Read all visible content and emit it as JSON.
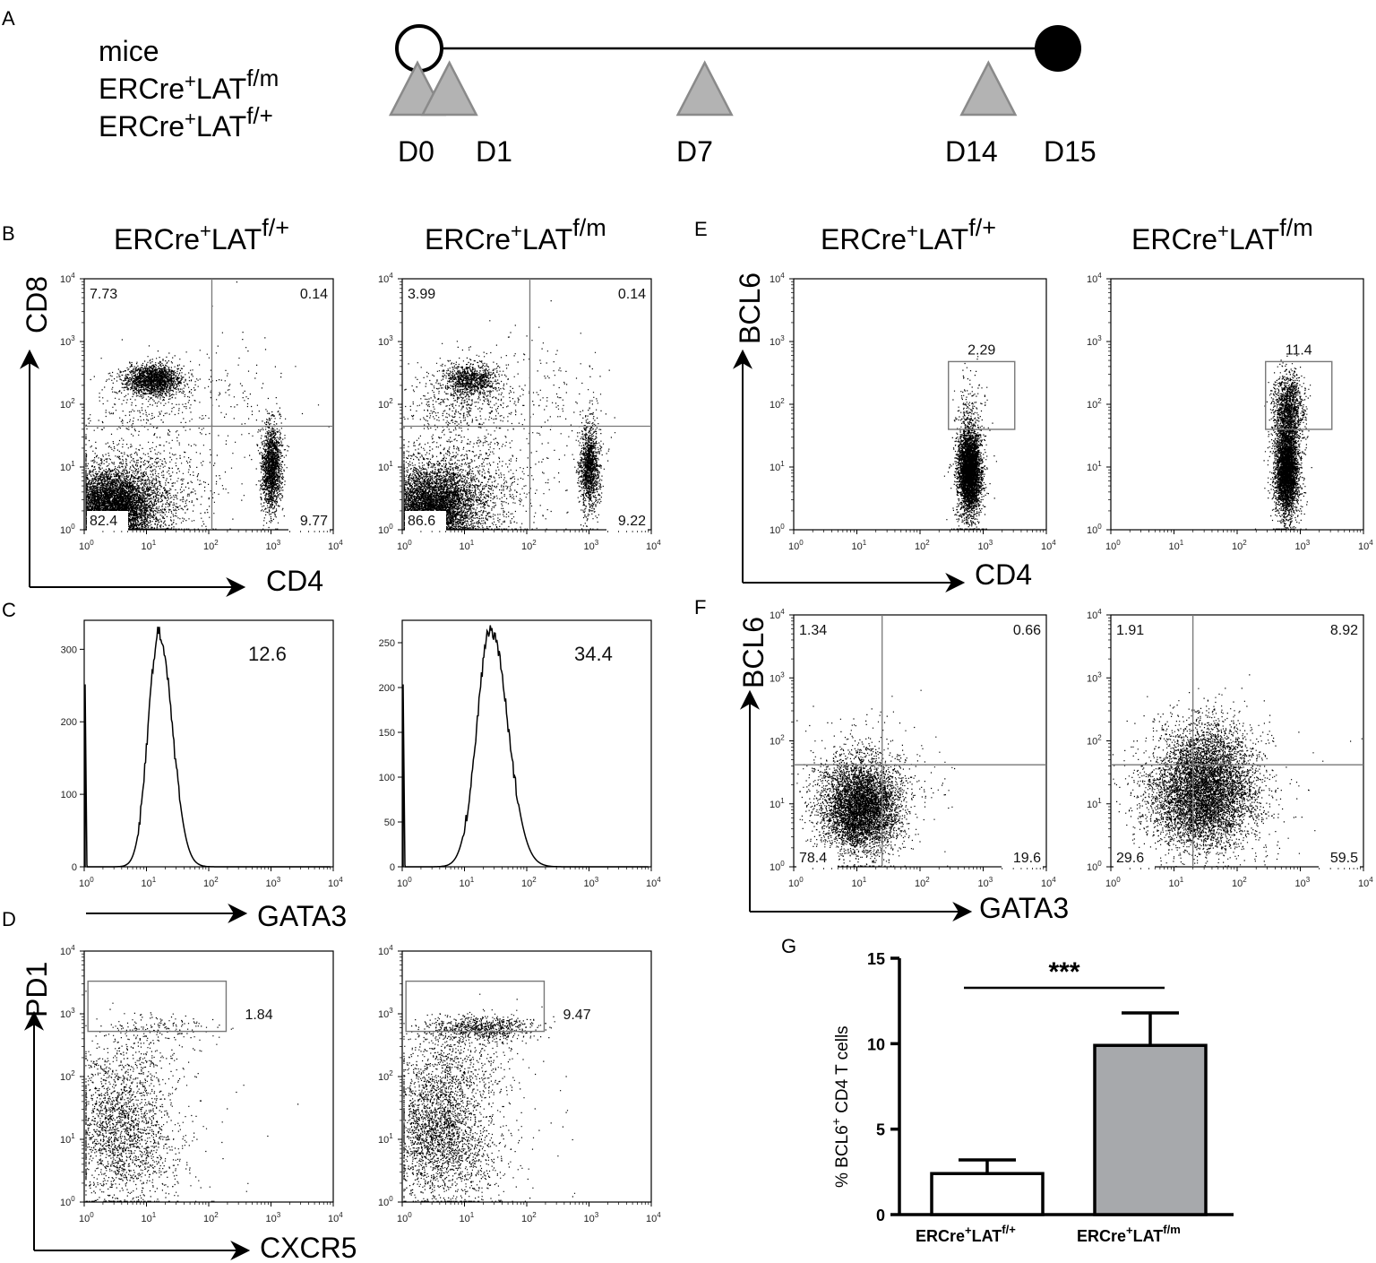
{
  "panel_labels": {
    "A": "A",
    "B": "B",
    "C": "C",
    "D": "D",
    "E": "E",
    "F": "F",
    "G": "G"
  },
  "timeline": {
    "mice_label": "mice",
    "genotype1": {
      "base": "ERCre",
      "sup1": "+",
      "mid": "LAT",
      "sup2": "f/m"
    },
    "genotype2": {
      "base": "ERCre",
      "sup1": "+",
      "mid": "LAT",
      "sup2": "f/+"
    },
    "days": [
      "D0",
      "D1",
      "D7",
      "D14",
      "D15"
    ],
    "day_values": [
      0,
      1,
      7,
      14,
      15
    ],
    "injection_days": [
      0,
      1,
      7,
      14
    ],
    "start_marker": "open-circle",
    "end_marker": "filled-circle"
  },
  "genotype_titles": {
    "wt": {
      "base": "ERCre",
      "sup1": "+",
      "mid": "LAT",
      "sup2": "f/+"
    },
    "mut": {
      "base": "ERCre",
      "sup1": "+",
      "mid": "LAT",
      "sup2": "f/m"
    }
  },
  "axis_names": {
    "B_y": "CD8",
    "B_x": "CD4",
    "C_x": "GATA3",
    "D_y": "PD1",
    "D_x": "CXCR5",
    "E_y": "BCL6",
    "E_x": "CD4",
    "F_y": "BCL6",
    "F_x": "GATA3"
  },
  "log_ticks": {
    "labels": [
      {
        "base": "10",
        "exp": "0"
      },
      {
        "base": "10",
        "exp": "1"
      },
      {
        "base": "10",
        "exp": "2"
      },
      {
        "base": "10",
        "exp": "3"
      },
      {
        "base": "10",
        "exp": "4"
      }
    ],
    "range": [
      0,
      4
    ]
  },
  "chart_data": [
    {
      "type": "scatter",
      "panel": "B-left",
      "x_channel": "CD4",
      "y_channel": "CD8",
      "scale": "log",
      "quadrant_values": {
        "ul": "7.73",
        "ur": "0.14",
        "ll": "82.4",
        "lr": "9.77"
      }
    },
    {
      "type": "scatter",
      "panel": "B-right",
      "x_channel": "CD4",
      "y_channel": "CD8",
      "scale": "log",
      "quadrant_values": {
        "ul": "3.99",
        "ur": "0.14",
        "ll": "86.6",
        "lr": "9.22"
      }
    },
    {
      "type": "line",
      "panel": "C-left",
      "x_channel": "GATA3",
      "scale": "log",
      "yticks": [
        "0",
        "100",
        "200",
        "300"
      ],
      "ylim": [
        0,
        340
      ],
      "peak_x_log": 1.2,
      "gate_value": "12.6"
    },
    {
      "type": "line",
      "panel": "C-right",
      "x_channel": "GATA3",
      "scale": "log",
      "yticks": [
        "0",
        "50",
        "100",
        "150",
        "200",
        "250"
      ],
      "ylim": [
        0,
        275
      ],
      "peak_x_log": 1.4,
      "gate_value": "34.4"
    },
    {
      "type": "scatter",
      "panel": "D-left",
      "x_channel": "CXCR5",
      "y_channel": "PD1",
      "scale": "log",
      "gate_value": "1.84"
    },
    {
      "type": "scatter",
      "panel": "D-right",
      "x_channel": "CXCR5",
      "y_channel": "PD1",
      "scale": "log",
      "gate_value": "9.47"
    },
    {
      "type": "scatter",
      "panel": "E-left",
      "x_channel": "CD4",
      "y_channel": "BCL6",
      "scale": "log",
      "gate_value": "2.29"
    },
    {
      "type": "scatter",
      "panel": "E-right",
      "x_channel": "CD4",
      "y_channel": "BCL6",
      "scale": "log",
      "gate_value": "11.4"
    },
    {
      "type": "scatter",
      "panel": "F-left",
      "x_channel": "GATA3",
      "y_channel": "BCL6",
      "scale": "log",
      "quadrant_values": {
        "ul": "1.34",
        "ur": "0.66",
        "ll": "78.4",
        "lr": "19.6"
      }
    },
    {
      "type": "scatter",
      "panel": "F-right",
      "x_channel": "GATA3",
      "y_channel": "BCL6",
      "scale": "log",
      "quadrant_values": {
        "ul": "1.91",
        "ur": "8.92",
        "ll": "29.6",
        "lr": "59.5"
      }
    },
    {
      "type": "bar",
      "panel": "G",
      "categories": [
        {
          "base": "ERCre",
          "sup1": "+",
          "mid": "LAT",
          "sup2": "f/+"
        },
        {
          "base": "ERCre",
          "sup1": "+",
          "mid": "LAT",
          "sup2": "f/m"
        }
      ],
      "values": [
        2.4,
        9.9
      ],
      "errors": [
        0.8,
        1.9
      ],
      "bar_colors": [
        "#ffffff",
        "#a7a9ac"
      ],
      "ylim": [
        0,
        15
      ],
      "yticks": [
        "0",
        "5",
        "10",
        "15"
      ],
      "ylabel": {
        "pre": "% BCL6",
        "sup": "+",
        "post": " CD4 T cells"
      },
      "significance": "***"
    }
  ]
}
